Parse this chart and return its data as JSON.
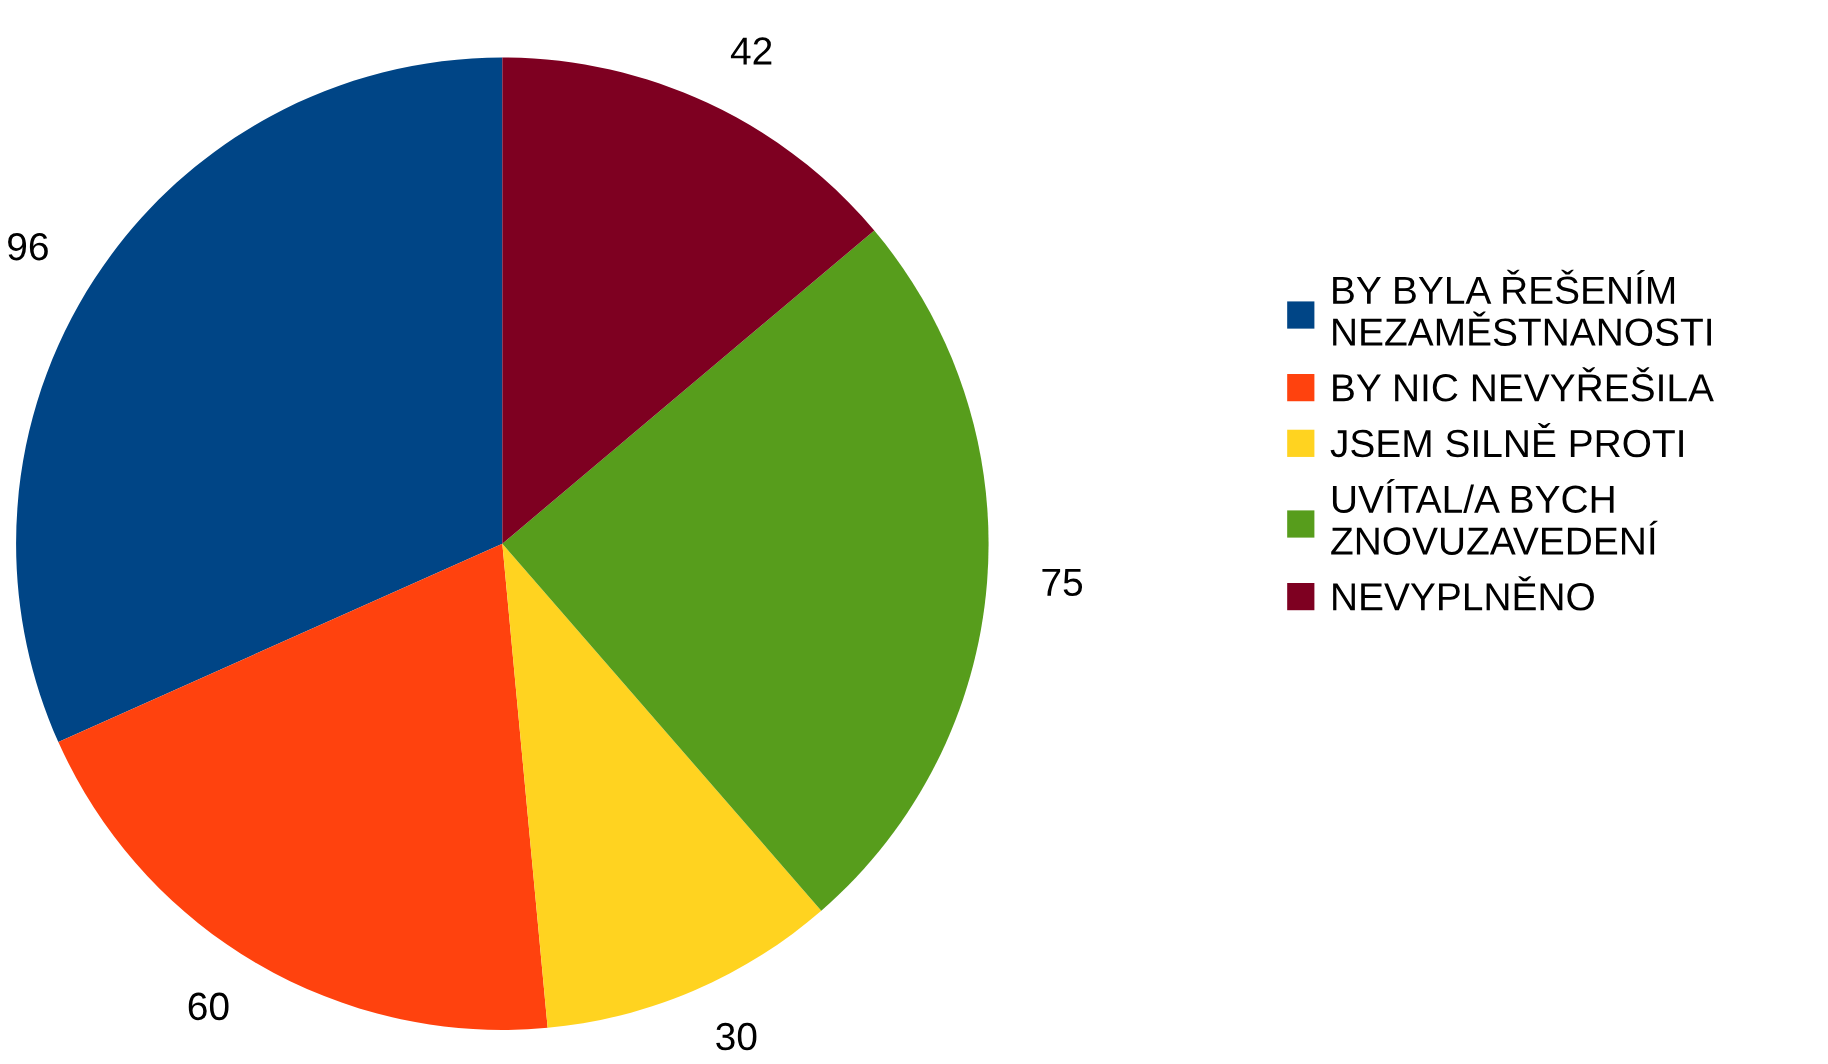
{
  "chart_data": {
    "type": "pie",
    "categories": [
      "BY BYLA ŘEŠENÍM\nNEZAMĚSTNANOSTI",
      "BY NIC NEVYŘEŠILA",
      "JSEM SILNĚ PROTI",
      "UVÍTAL/A BYCH\nZNOVUZAVEDENÍ",
      "NEVYPLNĚNO"
    ],
    "values": [
      96,
      60,
      30,
      75,
      42
    ],
    "colors": [
      "#004586",
      "#ff420e",
      "#ffd320",
      "#579d1c",
      "#7e0021"
    ],
    "data_labels": true,
    "legend": "right"
  }
}
